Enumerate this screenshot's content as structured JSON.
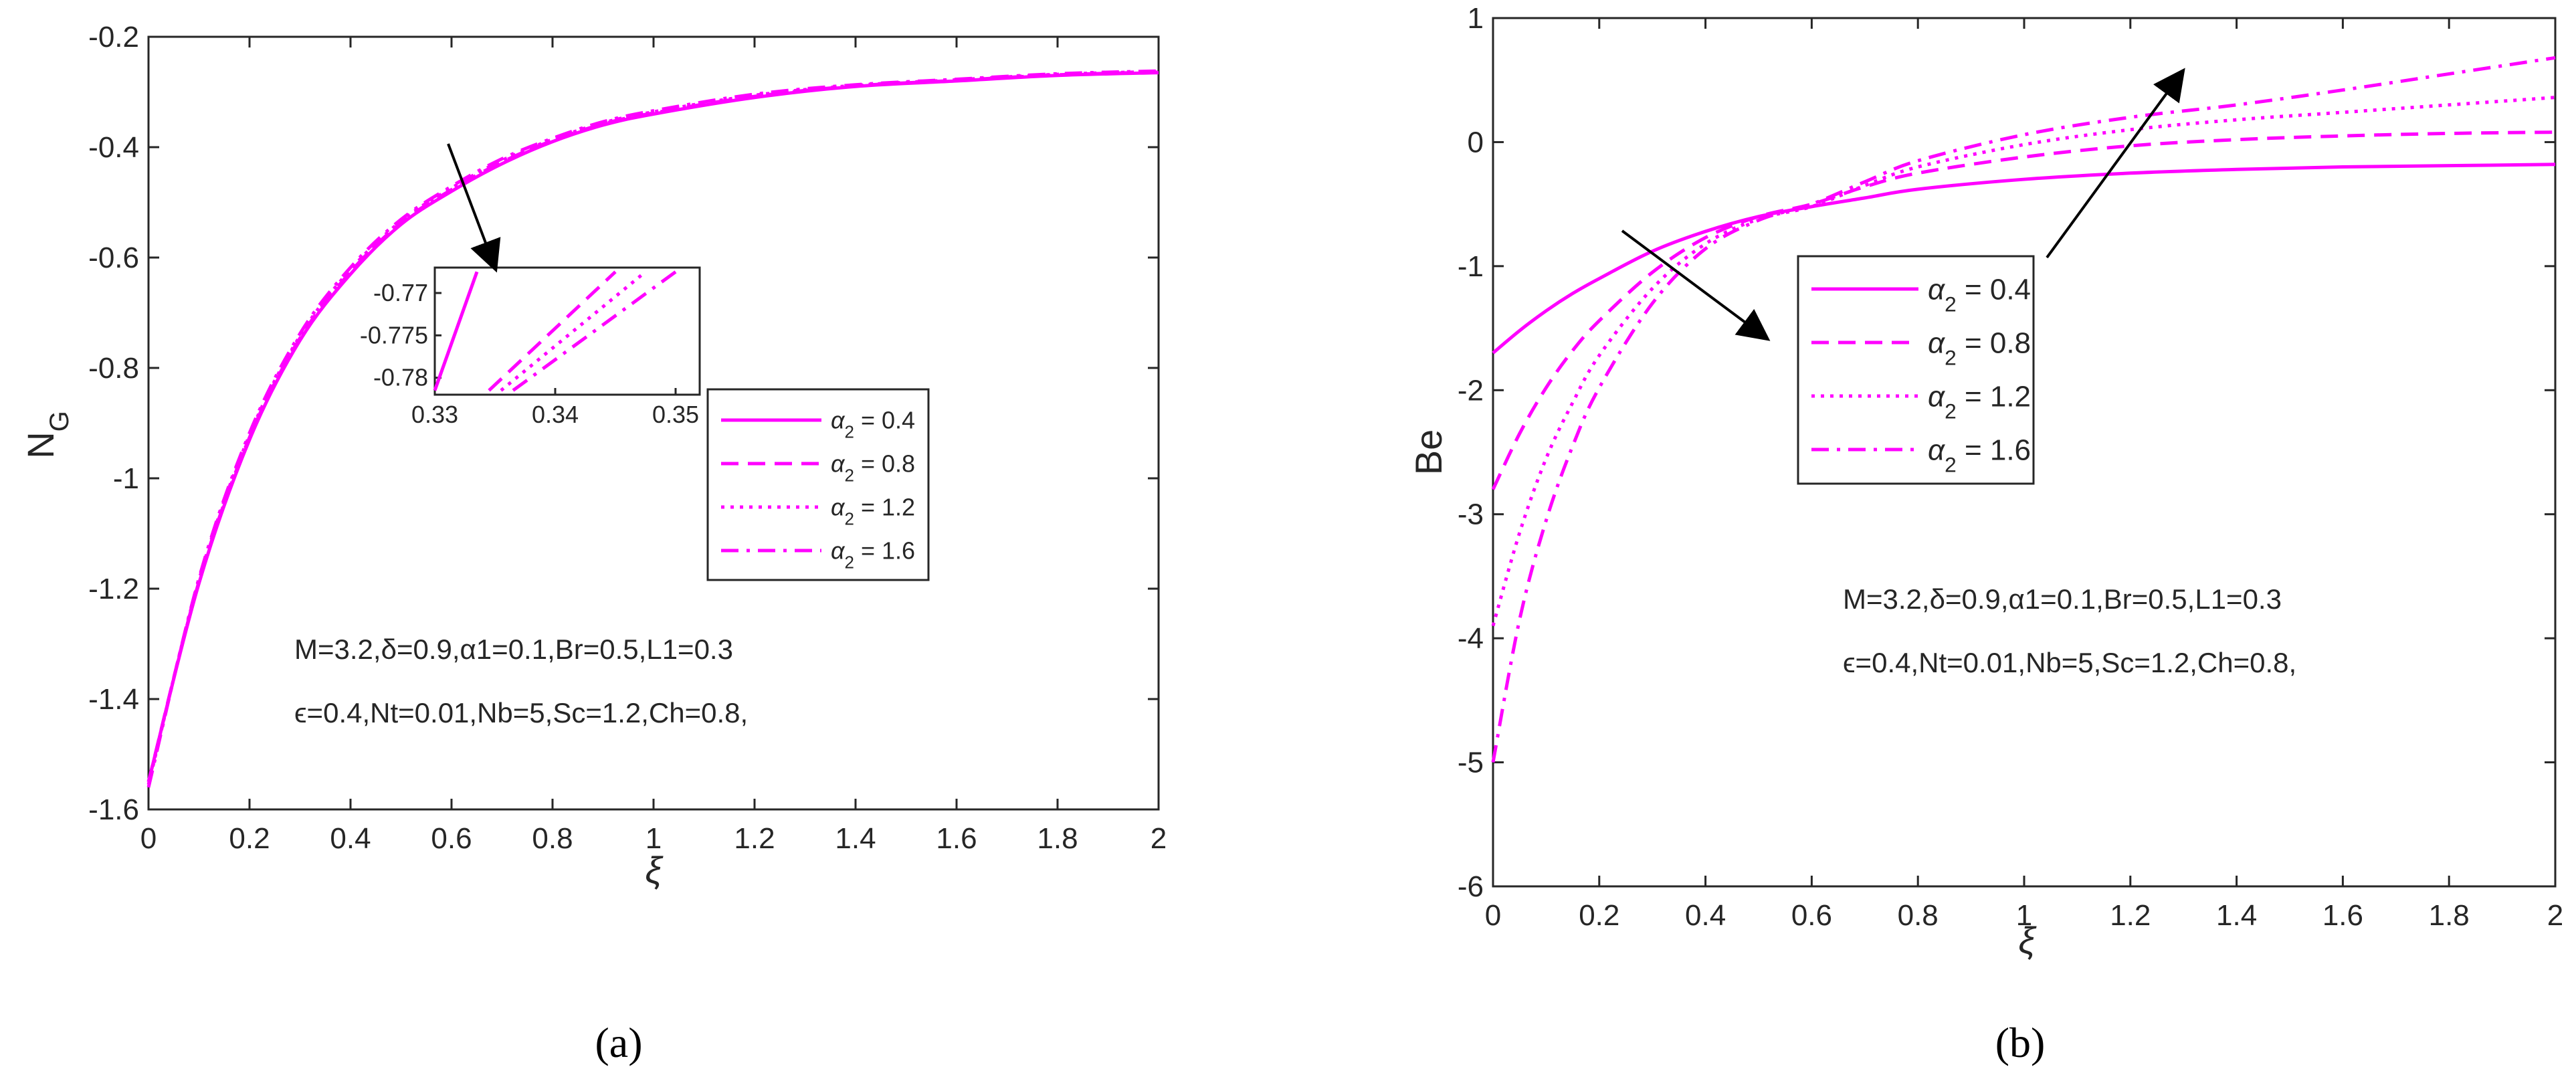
{
  "line_color": "#ff00ff",
  "chart_data": [
    {
      "type": "line",
      "panel_label": "(a)",
      "xlabel": "ξ",
      "ylabel": "N_G",
      "ylabel_main": "N",
      "ylabel_sub": "G",
      "xlim": [
        0,
        2
      ],
      "ylim": [
        -1.6,
        -0.2
      ],
      "xticks": [
        "0",
        "0.2",
        "0.4",
        "0.6",
        "0.8",
        "1",
        "1.2",
        "1.4",
        "1.6",
        "1.8",
        "2"
      ],
      "yticks": [
        "-0.2",
        "-0.4",
        "-0.6",
        "-0.8",
        "-1",
        "-1.2",
        "-1.4",
        "-1.6"
      ],
      "grid": false,
      "legend_position": "center-right",
      "x": [
        0,
        0.1,
        0.2,
        0.3,
        0.4,
        0.5,
        0.6,
        0.7,
        0.8,
        0.9,
        1.0,
        1.2,
        1.4,
        1.6,
        1.8,
        2.0
      ],
      "series": [
        {
          "name": "α2 = 0.4",
          "legend_main": "α",
          "legend_sub": "2",
          "legend_value": " = 0.4",
          "style": "solid",
          "values": [
            -1.55,
            -1.19,
            -0.93,
            -0.75,
            -0.63,
            -0.54,
            -0.48,
            -0.43,
            -0.39,
            -0.36,
            -0.34,
            -0.31,
            -0.29,
            -0.28,
            -0.27,
            -0.265
          ]
        },
        {
          "name": "α2 = 0.8",
          "legend_main": "α",
          "legend_sub": "2",
          "legend_value": " = 0.8",
          "style": "dashed",
          "values": [
            -1.55,
            -1.187,
            -0.926,
            -0.746,
            -0.626,
            -0.537,
            -0.477,
            -0.427,
            -0.388,
            -0.358,
            -0.338,
            -0.308,
            -0.289,
            -0.279,
            -0.269,
            -0.264
          ]
        },
        {
          "name": "α2 = 1.2",
          "legend_main": "α",
          "legend_sub": "2",
          "legend_value": " = 1.2",
          "style": "dotted",
          "values": [
            -1.555,
            -1.184,
            -0.922,
            -0.742,
            -0.622,
            -0.534,
            -0.474,
            -0.424,
            -0.386,
            -0.356,
            -0.336,
            -0.306,
            -0.288,
            -0.278,
            -0.268,
            -0.263
          ]
        },
        {
          "name": "α2 = 1.6",
          "legend_main": "α",
          "legend_sub": "2",
          "legend_value": " = 1.6",
          "style": "dashdot",
          "values": [
            -1.56,
            -1.181,
            -0.918,
            -0.738,
            -0.618,
            -0.531,
            -0.471,
            -0.421,
            -0.384,
            -0.354,
            -0.334,
            -0.304,
            -0.287,
            -0.277,
            -0.267,
            -0.262
          ]
        }
      ],
      "inset": {
        "xlim": [
          0.33,
          0.352
        ],
        "ylim": [
          -0.782,
          -0.767
        ],
        "xticks": [
          "0.33",
          "0.34",
          "0.35"
        ],
        "yticks": [
          "-0.77",
          "-0.775",
          "-0.78"
        ],
        "series_segments": [
          {
            "x": [
              0.33,
              0.3335
            ],
            "y_start": -0.7815,
            "y_end": -0.7675
          },
          {
            "x": [
              0.3345,
              0.345
            ],
            "y_start": -0.7815,
            "y_end": -0.7675
          },
          {
            "x": [
              0.3355,
              0.3475
            ],
            "y_start": -0.7815,
            "y_end": -0.7675
          },
          {
            "x": [
              0.3365,
              0.35
            ],
            "y_start": -0.7815,
            "y_end": -0.7675
          }
        ]
      },
      "annotation_text": [
        "M=3.2,δ=0.9,α1=0.1,Br=0.5,L1=0.3",
        "ϵ=0.4,Nt=0.01,Nb=5,Sc=1.2,Ch=0.8,"
      ]
    },
    {
      "type": "line",
      "panel_label": "(b)",
      "xlabel": "ξ",
      "ylabel": "Be",
      "xlim": [
        0,
        2
      ],
      "ylim": [
        -6,
        1
      ],
      "xticks": [
        "0",
        "0.2",
        "0.4",
        "0.6",
        "0.8",
        "1",
        "1.2",
        "1.4",
        "1.6",
        "1.8",
        "2"
      ],
      "yticks": [
        "1",
        "0",
        "-1",
        "-2",
        "-3",
        "-4",
        "-5",
        "-6"
      ],
      "grid": false,
      "legend_position": "center",
      "x": [
        0,
        0.05,
        0.1,
        0.15,
        0.2,
        0.3,
        0.4,
        0.5,
        0.6,
        0.7,
        0.8,
        1.0,
        1.2,
        1.4,
        1.6,
        1.8,
        2.0
      ],
      "series": [
        {
          "name": "α2 = 0.4",
          "legend_main": "α",
          "legend_sub": "2",
          "legend_value": " = 0.4",
          "style": "solid",
          "values": [
            -1.7,
            -1.52,
            -1.36,
            -1.22,
            -1.1,
            -0.88,
            -0.72,
            -0.6,
            -0.52,
            -0.45,
            -0.38,
            -0.3,
            -0.25,
            -0.22,
            -0.2,
            -0.19,
            -0.18
          ]
        },
        {
          "name": "α2 = 0.8",
          "legend_main": "α",
          "legend_sub": "2",
          "legend_value": " = 0.8",
          "style": "dashed",
          "values": [
            -2.8,
            -2.35,
            -1.98,
            -1.68,
            -1.44,
            -1.05,
            -0.77,
            -0.6,
            -0.5,
            -0.36,
            -0.25,
            -0.12,
            -0.03,
            0.02,
            0.05,
            0.07,
            0.08
          ]
        },
        {
          "name": "α2 = 1.2",
          "legend_main": "α",
          "legend_sub": "2",
          "legend_value": " = 1.2",
          "style": "dotted",
          "values": [
            -3.9,
            -3.15,
            -2.55,
            -2.1,
            -1.72,
            -1.18,
            -0.82,
            -0.62,
            -0.52,
            -0.35,
            -0.2,
            -0.02,
            0.1,
            0.18,
            0.24,
            0.3,
            0.36
          ]
        },
        {
          "name": "α2 = 1.6",
          "legend_main": "α",
          "legend_sub": "2",
          "legend_value": " = 1.6",
          "style": "dashdot",
          "values": [
            -5.0,
            -3.85,
            -3.05,
            -2.45,
            -1.98,
            -1.3,
            -0.86,
            -0.63,
            -0.5,
            -0.32,
            -0.15,
            0.06,
            0.2,
            0.3,
            0.42,
            0.55,
            0.68
          ]
        }
      ],
      "annotation_text": [
        "M=3.2,δ=0.9,α1=0.1,Br=0.5,L1=0.3",
        "ϵ=0.4,Nt=0.01,Nb=5,Sc=1.2,Ch=0.8,"
      ]
    }
  ]
}
